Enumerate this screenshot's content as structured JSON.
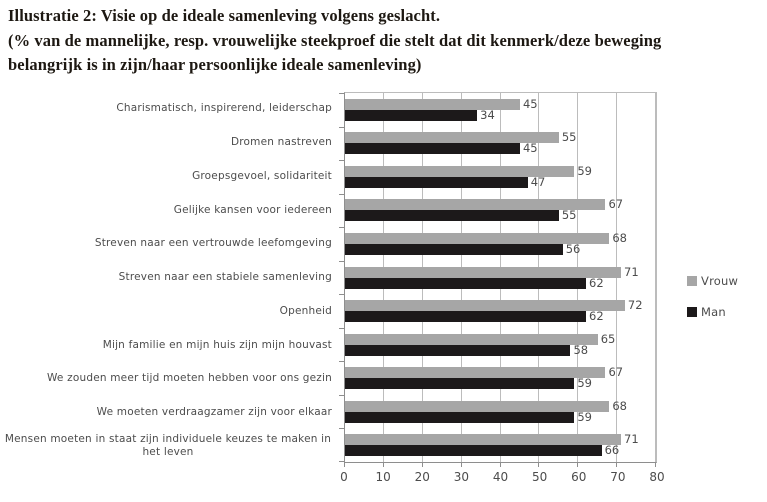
{
  "title": "Illustratie 2: Visie op de ideale samenleving volgens geslacht.",
  "subtitle_lines": [
    "(% van de mannelijke, resp. vrouwelijke steekproef die stelt dat dit kenmerk/deze beweging",
    "belangrijk is in zijn/haar persoonlijke ideale samenleving)"
  ],
  "chart_data": {
    "type": "bar",
    "orientation": "horizontal",
    "title": "Illustratie 2: Visie op de ideale samenleving volgens geslacht.",
    "categories": [
      "Charismatisch, inspirerend, leiderschap",
      "Dromen nastreven",
      "Groepsgevoel, solidariteit",
      "Gelijke kansen voor iedereen",
      "Streven naar een vertrouwde leefomgeving",
      "Streven naar een stabiele samenleving",
      "Openheid",
      "Mijn familie en mijn huis zijn mijn houvast",
      "We zouden meer tijd moeten hebben voor ons gezin",
      "We moeten verdraagzamer zijn voor elkaar",
      "Mensen moeten in staat zijn individuele keuzes te maken in het leven"
    ],
    "series": [
      {
        "name": "Vrouw",
        "color": "#a6a6a6",
        "values": [
          45,
          55,
          59,
          67,
          68,
          71,
          72,
          65,
          67,
          68,
          71
        ]
      },
      {
        "name": "Man",
        "color": "#1c191a",
        "values": [
          34,
          45,
          47,
          55,
          56,
          62,
          62,
          58,
          59,
          59,
          66
        ]
      }
    ],
    "xlim": [
      0,
      80
    ],
    "x_ticks": [
      0,
      10,
      20,
      30,
      40,
      50,
      60,
      70,
      80
    ],
    "grid": true,
    "value_labels": true,
    "legend_position": "right"
  },
  "colors": {
    "bar_vrouw": "#a6a6a6",
    "bar_man": "#1c191a",
    "gridline": "#bcbcbc",
    "axis": "#8e8e8e",
    "label_text": "#4c4c4c",
    "title_text": "#1d1812",
    "background": "#ffffff"
  }
}
